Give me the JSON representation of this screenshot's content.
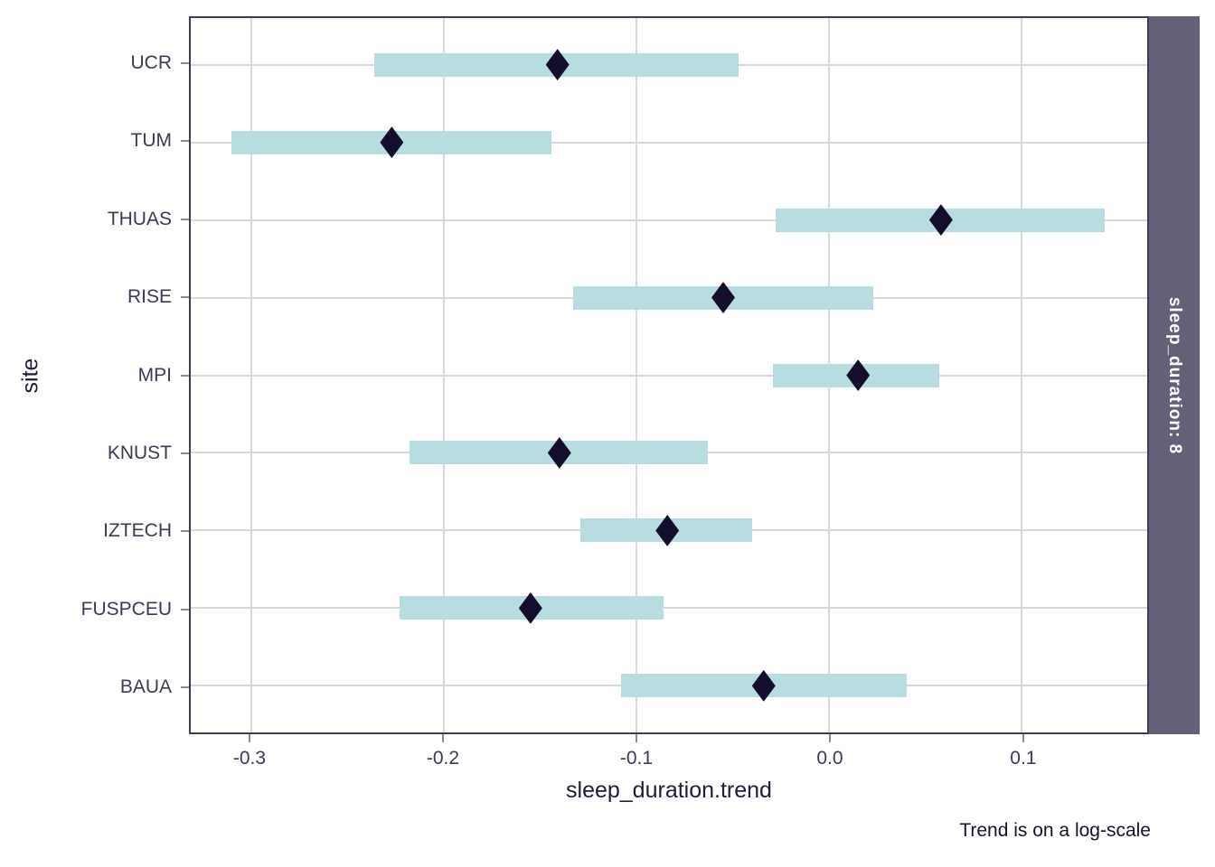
{
  "colors": {
    "background": "#ffffff",
    "bar": "#b8dde1",
    "point": "#120e2b",
    "strip_bg": "#656078",
    "strip_text": "#ffffff",
    "panel_border": "#3f3a55",
    "grid": "#d9d8e0",
    "tick": "#8d88a0",
    "axis_text": "#3f3955",
    "title_text": "#201b38",
    "caption_text": "#16112e"
  },
  "chart_data": {
    "type": "scatter",
    "subtype": "interval-dot-plot",
    "orientation": "horizontal",
    "title": "",
    "xlabel": "sleep_duration.trend",
    "ylabel": "site",
    "facet_label": "sleep_duration: 8",
    "caption": "Trend is on a log-scale",
    "grid": true,
    "legend": false,
    "xlim": [
      -0.3313,
      0.165
    ],
    "xticks": [
      -0.3,
      -0.2,
      -0.1,
      0.0,
      0.1
    ],
    "xtick_labels": [
      "-0.3",
      "-0.2",
      "-0.1",
      "0.0",
      "0.1"
    ],
    "categories": [
      "UCR",
      "TUM",
      "THUAS",
      "RISE",
      "MPI",
      "KNUST",
      "IZTECH",
      "FUSPCEU",
      "BAUA"
    ],
    "points": [
      {
        "site": "UCR",
        "trend": -0.141,
        "ci_low": -0.236,
        "ci_high": -0.047
      },
      {
        "site": "TUM",
        "trend": -0.227,
        "ci_low": -0.31,
        "ci_high": -0.144
      },
      {
        "site": "THUAS",
        "trend": 0.058,
        "ci_low": -0.028,
        "ci_high": 0.143
      },
      {
        "site": "RISE",
        "trend": -0.055,
        "ci_low": -0.133,
        "ci_high": 0.023
      },
      {
        "site": "MPI",
        "trend": 0.015,
        "ci_low": -0.029,
        "ci_high": 0.057
      },
      {
        "site": "KNUST",
        "trend": -0.14,
        "ci_low": -0.218,
        "ci_high": -0.063
      },
      {
        "site": "IZTECH",
        "trend": -0.084,
        "ci_low": -0.129,
        "ci_high": -0.04
      },
      {
        "site": "FUSPCEU",
        "trend": -0.155,
        "ci_low": -0.223,
        "ci_high": -0.086
      },
      {
        "site": "BAUA",
        "trend": -0.034,
        "ci_low": -0.108,
        "ci_high": 0.04
      }
    ]
  }
}
